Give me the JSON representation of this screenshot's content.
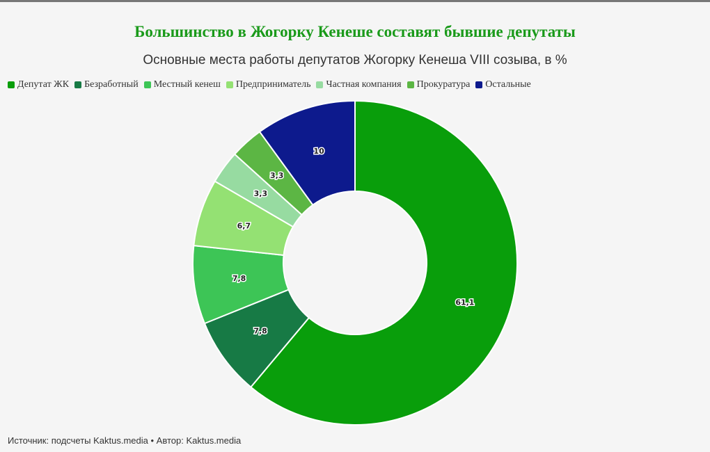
{
  "chart_data": {
    "type": "donut",
    "title": "Большинство в Жогорку Кенеше составят бывшие депутаты",
    "subtitle": "Основные места работы депутатов Жогорку Кенеша VIII созыва, в %",
    "categories": [
      "Депутат ЖК",
      "Безработный",
      "Местный кенеш",
      "Предприниматель",
      "Частная компания",
      "Прокуратура",
      "Остальные"
    ],
    "values": [
      61.1,
      7.8,
      7.8,
      6.7,
      3.3,
      3.3,
      10
    ],
    "value_labels": [
      "61,1",
      "7,8",
      "7,8",
      "6,7",
      "3,3",
      "3,3",
      "10"
    ],
    "colors": [
      "#099e0b",
      "#177a45",
      "#3dc556",
      "#94e173",
      "#97dba1",
      "#5cb644",
      "#0d1a8d"
    ],
    "source": "Источник: подсчеты Kaktus.media • Автор: Kaktus.media"
  }
}
